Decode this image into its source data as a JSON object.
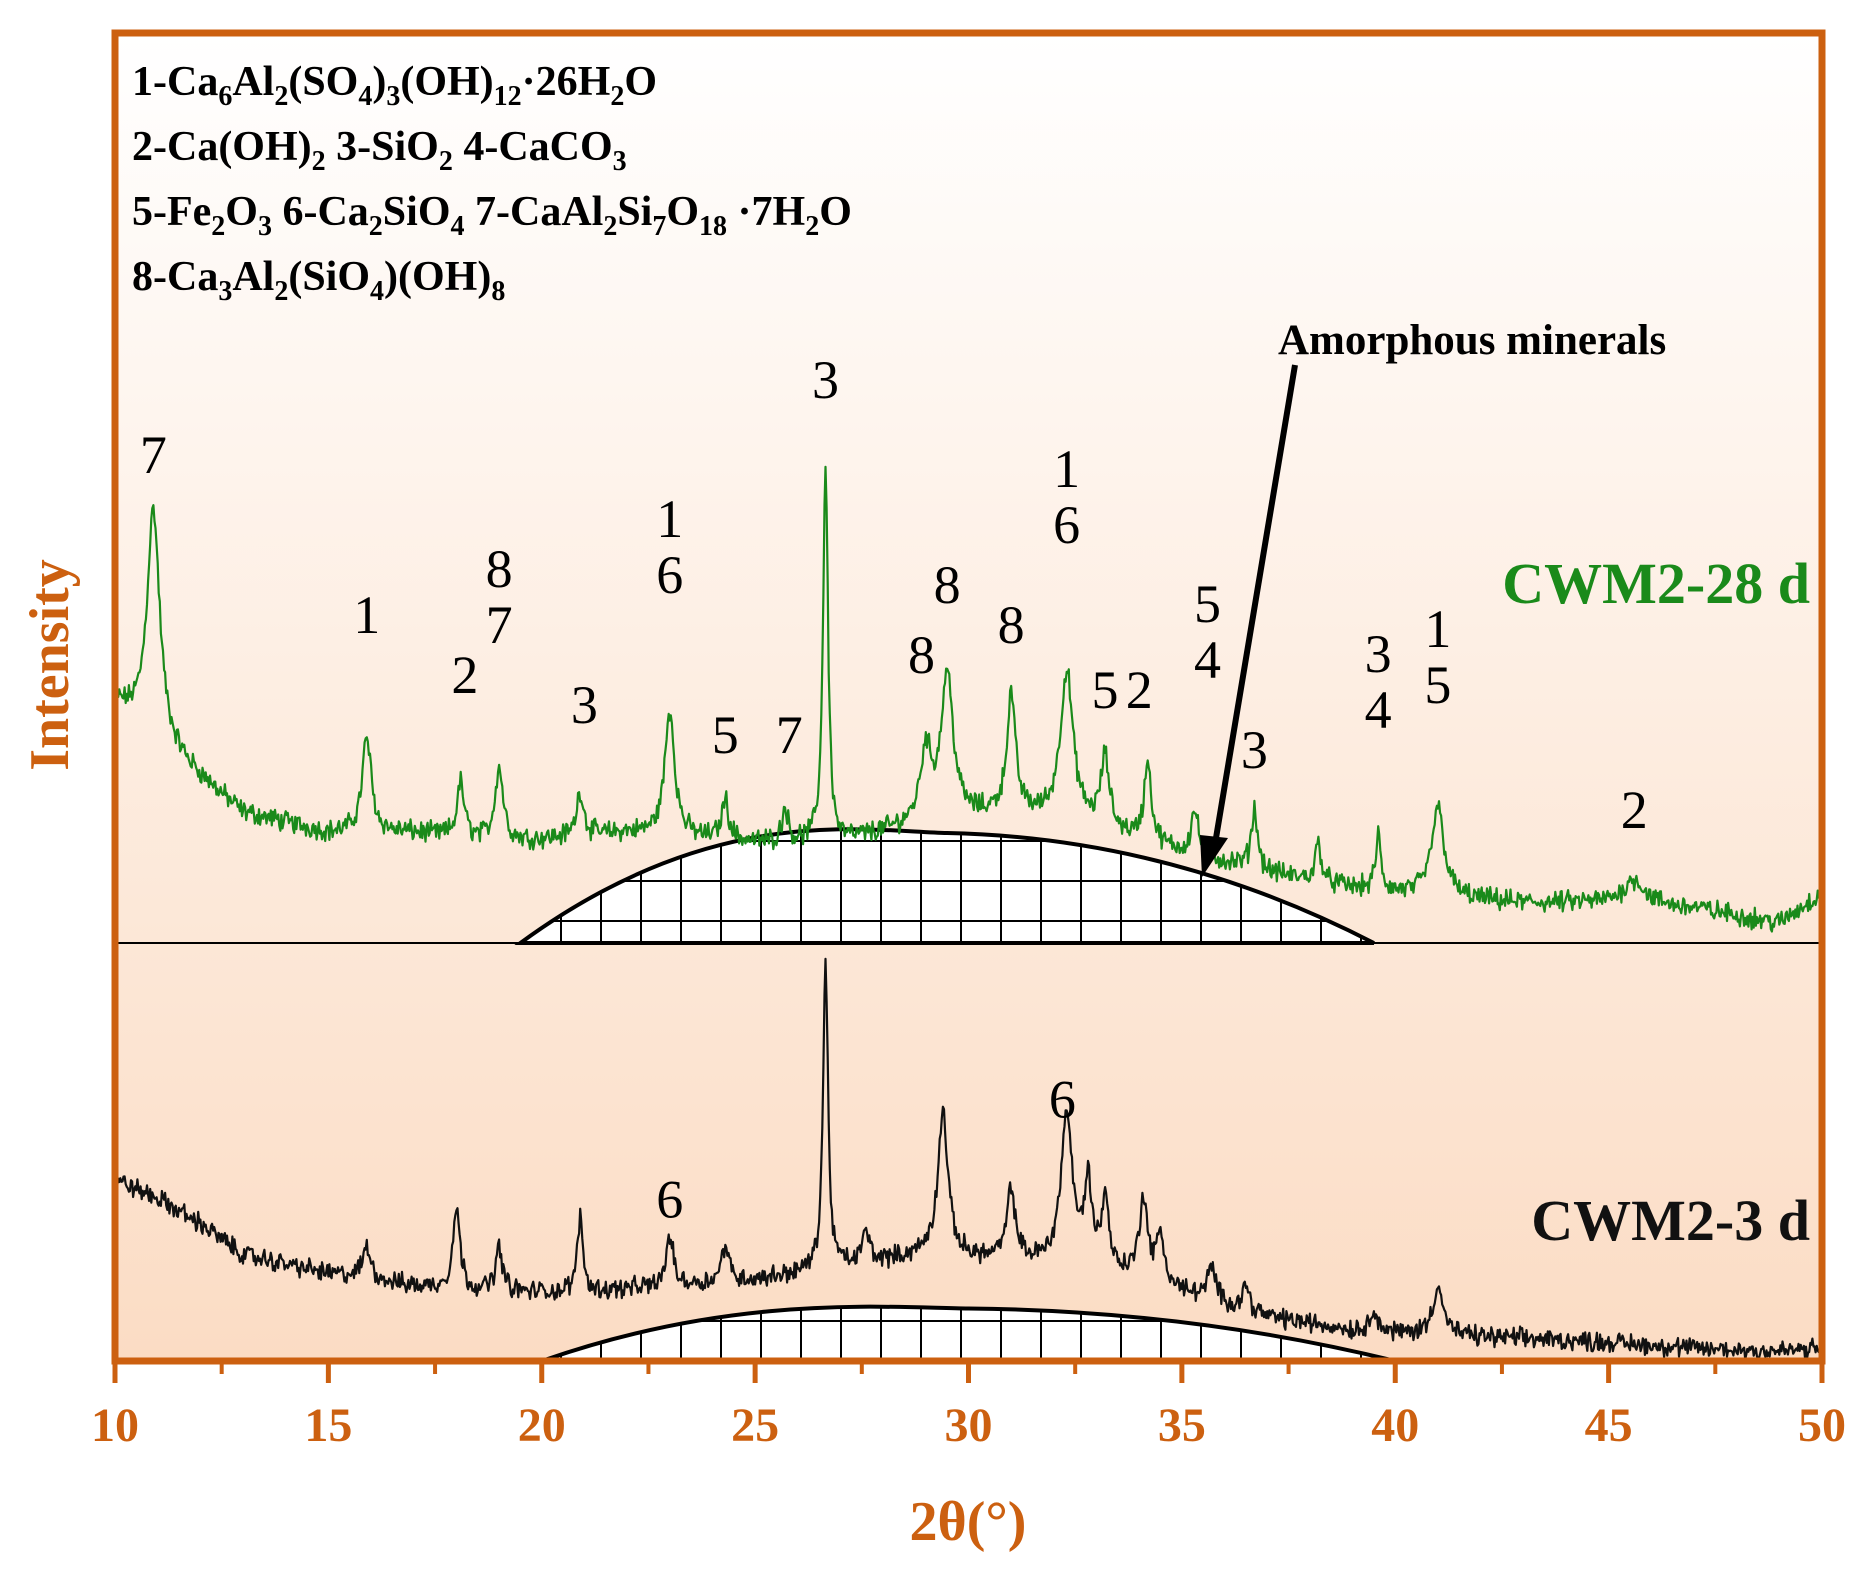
{
  "colors": {
    "axis": "#cc6010",
    "series_28d": "#1a8a1a",
    "series_3d": "#111111",
    "bg_top": "#ffffff",
    "bg_bottom": "#fbdcc4"
  },
  "chart_data": {
    "type": "line",
    "title": "",
    "xlabel": "2θ(°)",
    "ylabel": "Intensity",
    "xlim": [
      10,
      50
    ],
    "x_ticks": [
      "10",
      "15",
      "20",
      "25",
      "30",
      "35",
      "40",
      "45",
      "50"
    ],
    "legend_lines": [
      {
        "parts": [
          [
            "1-Ca",
            ""
          ],
          [
            "6",
            "sub"
          ],
          [
            "Al",
            ""
          ],
          [
            "2",
            "sub"
          ],
          [
            "(SO",
            ""
          ],
          [
            "4",
            "sub"
          ],
          [
            ")",
            ""
          ],
          [
            "3",
            "sub"
          ],
          [
            "(OH)",
            ""
          ],
          [
            "12",
            "sub"
          ],
          [
            "·26H",
            ""
          ],
          [
            "2",
            "sub"
          ],
          [
            "O",
            ""
          ]
        ]
      },
      {
        "parts": [
          [
            "2-Ca(OH)",
            ""
          ],
          [
            "2",
            "sub"
          ],
          [
            "   3-SiO",
            ""
          ],
          [
            "2",
            "sub"
          ],
          [
            "  4-CaCO",
            ""
          ],
          [
            "3",
            "sub"
          ]
        ]
      },
      {
        "parts": [
          [
            "5-Fe",
            ""
          ],
          [
            "2",
            "sub"
          ],
          [
            "O",
            ""
          ],
          [
            "3",
            "sub"
          ],
          [
            " 6-Ca",
            ""
          ],
          [
            "2",
            "sub"
          ],
          [
            "SiO",
            ""
          ],
          [
            "4",
            "sub"
          ],
          [
            "  7-CaAl",
            ""
          ],
          [
            "2",
            "sub"
          ],
          [
            "Si",
            ""
          ],
          [
            "7",
            "sub"
          ],
          [
            "O",
            ""
          ],
          [
            "18",
            "sub"
          ],
          [
            " ·7H",
            ""
          ],
          [
            "2",
            "sub"
          ],
          [
            "O",
            ""
          ]
        ]
      },
      {
        "parts": [
          [
            "8-Ca",
            ""
          ],
          [
            "3",
            "sub"
          ],
          [
            "Al",
            ""
          ],
          [
            "2",
            "sub"
          ],
          [
            "(SiO",
            ""
          ],
          [
            "4",
            "sub"
          ],
          [
            ")(OH)",
            ""
          ],
          [
            "8",
            "sub"
          ]
        ]
      }
    ],
    "annotation": "Amorphous minerals",
    "series": [
      {
        "name": "CWM2-28 d",
        "baseline_unit": 0,
        "amorphous_hump": {
          "x_start": 19.5,
          "x_end": 39.5,
          "peak_x": 29.5,
          "height": 100
        },
        "profile": [
          [
            10,
            240
          ],
          [
            11,
            200
          ],
          [
            13,
            130
          ],
          [
            15,
            110
          ],
          [
            17,
            110
          ],
          [
            19,
            100
          ],
          [
            22,
            110
          ],
          [
            25,
            100
          ],
          [
            27,
            100
          ],
          [
            29,
            120
          ],
          [
            31,
            130
          ],
          [
            33,
            115
          ],
          [
            35,
            90
          ],
          [
            37,
            70
          ],
          [
            39,
            55
          ],
          [
            41,
            45
          ],
          [
            43,
            40
          ],
          [
            45,
            40
          ],
          [
            47,
            35
          ],
          [
            49,
            20
          ],
          [
            50,
            50
          ]
        ],
        "peaks": [
          [
            10.9,
            230,
            0.18
          ],
          [
            15.9,
            95,
            0.13
          ],
          [
            18.1,
            55,
            0.1
          ],
          [
            19.0,
            75,
            0.12
          ],
          [
            20.9,
            45,
            0.1
          ],
          [
            23.0,
            125,
            0.14
          ],
          [
            24.3,
            40,
            0.1
          ],
          [
            25.7,
            35,
            0.08
          ],
          [
            26.65,
            380,
            0.07
          ],
          [
            29.0,
            70,
            0.15
          ],
          [
            29.5,
            145,
            0.17
          ],
          [
            31.0,
            115,
            0.12
          ],
          [
            32.3,
            150,
            0.18
          ],
          [
            33.2,
            70,
            0.12
          ],
          [
            34.2,
            80,
            0.1
          ],
          [
            35.3,
            45,
            0.1
          ],
          [
            36.7,
            60,
            0.09
          ],
          [
            38.2,
            40,
            0.08
          ],
          [
            39.6,
            55,
            0.07
          ],
          [
            41.0,
            90,
            0.18
          ],
          [
            45.6,
            25,
            0.3
          ]
        ],
        "peak_labels": [
          {
            "x": 10.9,
            "lines": [
              "7"
            ],
            "top": 470
          },
          {
            "x": 15.9,
            "lines": [
              "1"
            ],
            "top": 310
          },
          {
            "x": 18.2,
            "lines": [
              "2"
            ],
            "top": 250
          },
          {
            "x": 19.0,
            "lines": [
              "8",
              "7"
            ],
            "top": 300
          },
          {
            "x": 21.0,
            "lines": [
              "3"
            ],
            "top": 220
          },
          {
            "x": 23.0,
            "lines": [
              "1",
              "6"
            ],
            "top": 350
          },
          {
            "x": 24.3,
            "lines": [
              "5"
            ],
            "top": 190
          },
          {
            "x": 25.8,
            "lines": [
              "7"
            ],
            "top": 190
          },
          {
            "x": 26.65,
            "lines": [
              "3"
            ],
            "top": 545
          },
          {
            "x": 28.9,
            "lines": [
              "8"
            ],
            "top": 270
          },
          {
            "x": 29.5,
            "lines": [
              "8"
            ],
            "top": 340
          },
          {
            "x": 31.0,
            "lines": [
              "8"
            ],
            "top": 300
          },
          {
            "x": 32.3,
            "lines": [
              "1",
              "6"
            ],
            "top": 400
          },
          {
            "x": 33.2,
            "lines": [
              "5"
            ],
            "top": 235
          },
          {
            "x": 34.0,
            "lines": [
              "2"
            ],
            "top": 235
          },
          {
            "x": 35.6,
            "lines": [
              "5",
              "4"
            ],
            "top": 265
          },
          {
            "x": 36.7,
            "lines": [
              "3"
            ],
            "top": 175
          },
          {
            "x": 39.6,
            "lines": [
              "3",
              "4"
            ],
            "top": 215
          },
          {
            "x": 41.0,
            "lines": [
              "1",
              "5"
            ],
            "top": 240
          },
          {
            "x": 45.6,
            "lines": [
              "2"
            ],
            "top": 115
          }
        ]
      },
      {
        "name": "CWM2-3 d",
        "baseline_unit": 0,
        "amorphous_hump": {
          "x_start": 20.0,
          "x_end": 40.0,
          "peak_x": 30.0,
          "height": 50
        },
        "profile": [
          [
            10,
            145
          ],
          [
            11,
            130
          ],
          [
            12,
            110
          ],
          [
            13,
            85
          ],
          [
            15,
            70
          ],
          [
            17,
            60
          ],
          [
            19,
            55
          ],
          [
            21,
            55
          ],
          [
            23,
            60
          ],
          [
            25,
            65
          ],
          [
            27,
            75
          ],
          [
            29,
            85
          ],
          [
            31,
            80
          ],
          [
            33,
            75
          ],
          [
            35,
            55
          ],
          [
            37,
            35
          ],
          [
            39,
            25
          ],
          [
            41,
            20
          ],
          [
            43,
            18
          ],
          [
            45,
            15
          ],
          [
            47,
            10
          ],
          [
            49,
            8
          ],
          [
            50,
            10
          ]
        ],
        "peaks": [
          [
            15.9,
            25,
            0.12
          ],
          [
            18.0,
            65,
            0.1
          ],
          [
            19.0,
            35,
            0.1
          ],
          [
            20.9,
            60,
            0.08
          ],
          [
            23.0,
            40,
            0.1
          ],
          [
            24.3,
            30,
            0.1
          ],
          [
            26.65,
            245,
            0.07
          ],
          [
            27.6,
            25,
            0.1
          ],
          [
            29.4,
            115,
            0.14
          ],
          [
            31.0,
            55,
            0.12
          ],
          [
            32.3,
            120,
            0.16
          ],
          [
            32.8,
            65,
            0.1
          ],
          [
            33.2,
            55,
            0.1
          ],
          [
            34.1,
            65,
            0.12
          ],
          [
            34.5,
            40,
            0.1
          ],
          [
            35.7,
            25,
            0.12
          ],
          [
            36.5,
            20,
            0.1
          ],
          [
            39.5,
            20,
            0.08
          ],
          [
            41.0,
            40,
            0.15
          ]
        ],
        "peak_labels": [
          {
            "x": 23.0,
            "lines": [
              "6"
            ],
            "top": 115
          },
          {
            "x": 32.2,
            "lines": [
              "6"
            ],
            "top": 195
          }
        ]
      }
    ]
  }
}
